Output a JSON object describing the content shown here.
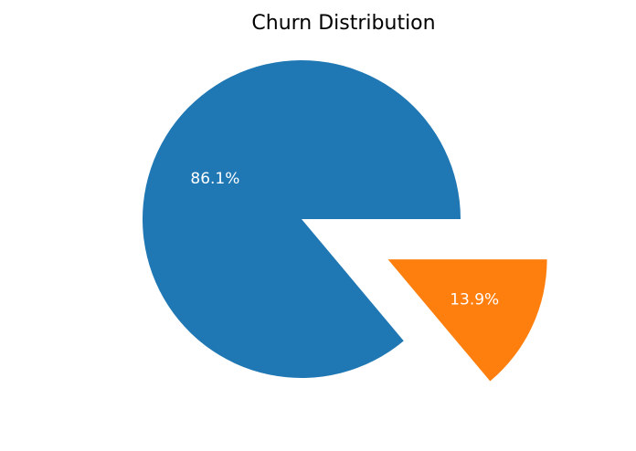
{
  "chart_data": {
    "type": "pie",
    "title": "Churn Distribution",
    "slices": [
      {
        "value": 86.1,
        "label": "86.1%",
        "color": "#1f77b4",
        "explode": 0
      },
      {
        "value": 13.9,
        "label": "13.9%",
        "color": "#ff7f0e",
        "explode": 0.6
      }
    ],
    "start_angle_deg": 0,
    "direction": "counterclockwise",
    "legend": "none"
  }
}
